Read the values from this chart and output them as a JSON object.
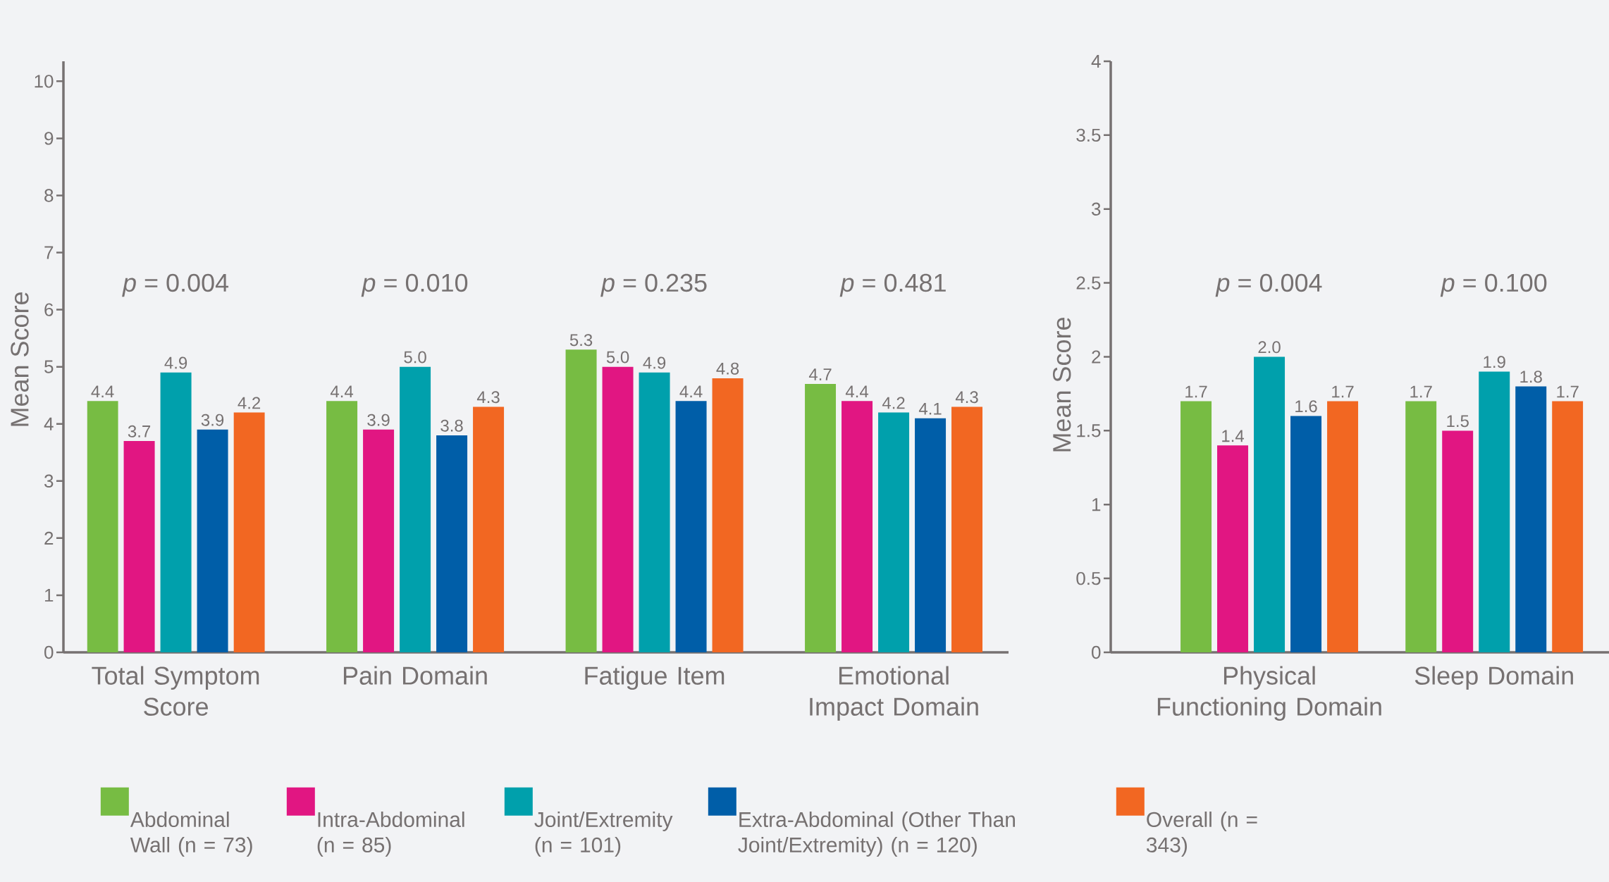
{
  "chart_data": [
    {
      "type": "bar",
      "ylabel": "Mean Score",
      "categories": [
        "Total Symptom Score",
        "Pain Domain",
        "Fatigue Item",
        "Emotional Impact Domain"
      ],
      "series": [
        {
          "name": "Abdominal Wall (n = 73)",
          "color": "#77bc43",
          "values": [
            4.4,
            4.4,
            5.3,
            4.7
          ],
          "value_labels": [
            "4.4",
            "4.4",
            "5.3",
            "4.7"
          ]
        },
        {
          "name": "Intra-Abdominal (n = 85)",
          "color": "#e11682",
          "values": [
            3.7,
            3.9,
            5.0,
            4.4
          ],
          "value_labels": [
            "3.7",
            "3.9",
            "5.0",
            "4.4"
          ]
        },
        {
          "name": "Joint/Extremity (n = 101)",
          "color": "#00a0ac",
          "values": [
            4.9,
            5.0,
            4.9,
            4.2
          ],
          "value_labels": [
            "4.9",
            "5.0",
            "4.9",
            "4.2"
          ]
        },
        {
          "name": "Extra-Abdominal (Other Than Joint/Extremity) (n = 120)",
          "color": "#005ea8",
          "values": [
            3.9,
            3.8,
            4.4,
            4.1
          ],
          "value_labels": [
            "3.9",
            "3.8",
            "4.4",
            "4.1"
          ]
        },
        {
          "name": "Overall (n = 343)",
          "color": "#f26722",
          "values": [
            4.2,
            4.3,
            4.8,
            4.3
          ],
          "value_labels": [
            "4.2",
            "4.3",
            "4.8",
            "4.3"
          ]
        }
      ],
      "ylim": [
        0,
        10.35
      ],
      "yticks": [
        0,
        1,
        2,
        3,
        4,
        5,
        6,
        7,
        8,
        9,
        10
      ],
      "legend": "bottom",
      "grid": false,
      "annotations": [
        "*p* = 0.004",
        "*p* = 0.010",
        "*p* = 0.235",
        "*p* = 0.481"
      ]
    },
    {
      "type": "bar",
      "ylabel": "Mean Score",
      "categories": [
        "Physical Functioning Domain",
        "Sleep Domain"
      ],
      "series": [
        {
          "color": "#77bc43",
          "values": [
            1.7,
            1.7
          ],
          "value_labels": [
            "1.7",
            "1.7"
          ]
        },
        {
          "color": "#e11682",
          "values": [
            1.4,
            1.5
          ],
          "value_labels": [
            "1.4",
            "1.5"
          ]
        },
        {
          "color": "#00a0ac",
          "values": [
            2.0,
            1.9
          ],
          "value_labels": [
            "2.0",
            "1.9"
          ]
        },
        {
          "color": "#005ea8",
          "values": [
            1.6,
            1.8
          ],
          "value_labels": [
            "1.6",
            "1.8"
          ]
        },
        {
          "color": "#f26722",
          "values": [
            1.7,
            1.7
          ],
          "value_labels": [
            "1.7",
            "1.7"
          ]
        }
      ],
      "ylim": [
        0,
        4
      ],
      "yticks": [
        0,
        0.5,
        1,
        1.5,
        2,
        2.5,
        3,
        3.5,
        4
      ],
      "grid": false,
      "annotations": [
        "*p* = 0.004",
        "*p* = 0.100"
      ]
    }
  ]
}
